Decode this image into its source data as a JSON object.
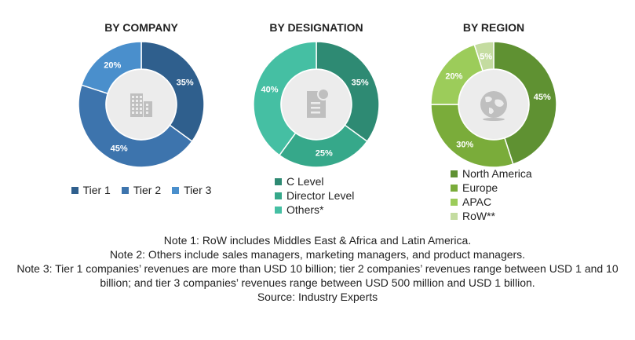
{
  "colors": {
    "tier1": "#2f5f8d",
    "tier2": "#3d74ad",
    "tier3": "#4a8fcc",
    "c_level": "#2e8a73",
    "director": "#36a88a",
    "others": "#45bfa3",
    "north_america": "#5f9132",
    "europe": "#7aac3a",
    "apac": "#9ccc5a",
    "row": "#c4dca0",
    "center": "#ececec",
    "icon": "#bfbfbf"
  },
  "chart_data": [
    {
      "type": "pie",
      "title": "BY COMPANY",
      "categories": [
        "Tier 1",
        "Tier 2",
        "Tier 3"
      ],
      "values": [
        35,
        45,
        20
      ],
      "labels": [
        "35%",
        "45%",
        "20%"
      ],
      "legend": "bottom"
    },
    {
      "type": "pie",
      "title": "BY DESIGNATION",
      "categories": [
        "C Level",
        "Director Level",
        "Others*"
      ],
      "values": [
        35,
        25,
        40
      ],
      "labels": [
        "35%",
        "25%",
        "40%"
      ],
      "legend": "bottom"
    },
    {
      "type": "pie",
      "title": "BY REGION",
      "categories": [
        "North America",
        "Europe",
        "APAC",
        "RoW**"
      ],
      "values": [
        45,
        30,
        20,
        5
      ],
      "labels": [
        "45%",
        "30%",
        "20%",
        "5%"
      ],
      "legend": "bottom"
    }
  ],
  "notes": [
    "Note 1: RoW includes Middles East & Africa and Latin America.",
    "Note 2: Others include sales managers, marketing managers, and product managers.",
    "Note 3: Tier 1 companies’ revenues are more than USD 10 billion; tier 2 companies’ revenues range between USD 1 and 10 billion; and tier 3 companies’ revenues range between USD 500 million and USD 1 billion.",
    "Source: Industry Experts"
  ],
  "icons": [
    "building-icon",
    "document-icon",
    "globe-icon"
  ]
}
